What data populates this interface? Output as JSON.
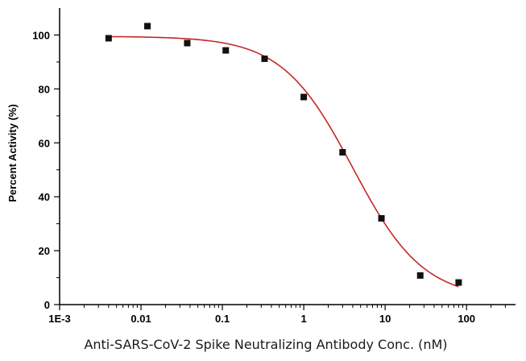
{
  "chart_data": {
    "type": "scatter",
    "xlabel": "Anti-SARS-CoV-2 Spike Neutralizing Antibody Conc. (nM)",
    "ylabel": "Percent Activity (%)",
    "x_scale": "log",
    "xlim": [
      0.001,
      400
    ],
    "ylim": [
      0,
      110
    ],
    "x_ticks": [
      {
        "value": 0.001,
        "label": "1E-3"
      },
      {
        "value": 0.01,
        "label": "0.01"
      },
      {
        "value": 0.1,
        "label": "0.1"
      },
      {
        "value": 1,
        "label": "1"
      },
      {
        "value": 10,
        "label": "10"
      },
      {
        "value": 100,
        "label": "100"
      }
    ],
    "y_ticks": [
      {
        "value": 0,
        "label": "0"
      },
      {
        "value": 20,
        "label": "20"
      },
      {
        "value": 40,
        "label": "40"
      },
      {
        "value": 60,
        "label": "60"
      },
      {
        "value": 80,
        "label": "80"
      },
      {
        "value": 100,
        "label": "100"
      }
    ],
    "grid": false,
    "series": [
      {
        "kind": "points",
        "marker": "square",
        "color": "#111111",
        "x": [
          0.004,
          0.012,
          0.037,
          0.11,
          0.33,
          1.0,
          3.0,
          9.0,
          27,
          80
        ],
        "y": [
          98.8,
          103.3,
          97.0,
          94.3,
          91.2,
          77.0,
          56.5,
          32.0,
          10.8,
          8.2
        ]
      },
      {
        "kind": "fit-curve",
        "color": "#c62828",
        "model": "4PL",
        "top": 99.5,
        "bottom": 2,
        "ic50": 4.0,
        "hill": 1.0,
        "x_range": [
          0.004,
          80
        ]
      }
    ]
  }
}
